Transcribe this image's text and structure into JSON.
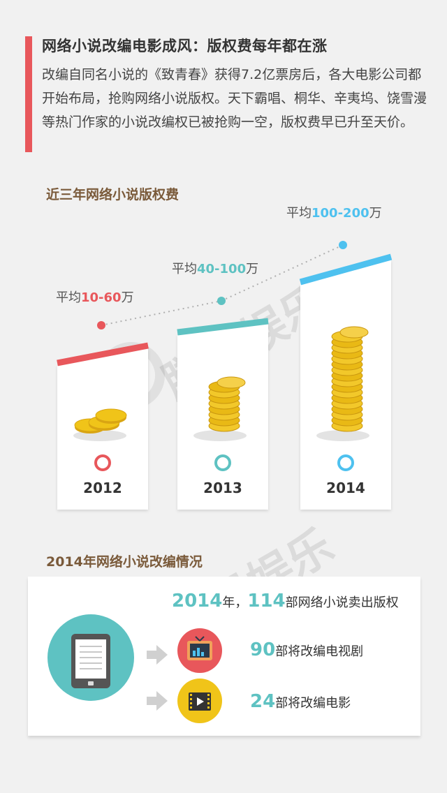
{
  "header": {
    "title": "网络小说改编电影成风：版权费每年都在涨",
    "intro": "改编自同名小说的《致青春》获得7.2亿票房后，各大电影公司都开始布局，抢购网络小说版权。天下霸唱、桐华、辛夷坞、饶雪漫等热门作家的小说改编权已被抢购一空，版权费早已升至天价。"
  },
  "section1": {
    "title": "近三年网络小说版权费"
  },
  "section2": {
    "title": "2014年网络小说改编情况"
  },
  "watermark": "腾讯娱乐",
  "colors": {
    "accent_red": "#e8575b",
    "accent_teal": "#5ec2c2",
    "accent_blue": "#4ec1ef",
    "coin_gold": "#f0c419",
    "title_brown": "#7a5a3a"
  },
  "chart_data": {
    "type": "line",
    "title": "近三年网络小说版权费",
    "categories": [
      "2012",
      "2013",
      "2014"
    ],
    "ranges": [
      [
        10,
        60
      ],
      [
        40,
        100
      ],
      [
        100,
        200
      ]
    ],
    "labels": [
      {
        "prefix": "平均",
        "value": "10-60",
        "suffix": "万"
      },
      {
        "prefix": "平均",
        "value": "40-100",
        "suffix": "万"
      },
      {
        "prefix": "平均",
        "value": "100-200",
        "suffix": "万"
      }
    ],
    "series_colors": [
      "#e8575b",
      "#5ec2c2",
      "#4ec1ef"
    ],
    "coin_stacks": [
      3,
      8,
      17
    ]
  },
  "stats": {
    "year_num": "2014",
    "year_suffix": "年，",
    "total_num": "114",
    "total_text": "部网络小说卖出版权",
    "tv_num": "90",
    "tv_text": "部将改编电视剧",
    "film_num": "24",
    "film_text": "部将改编电影",
    "icons": [
      "tablet-icon",
      "arrow-right-icon",
      "tv-icon",
      "film-icon"
    ]
  }
}
